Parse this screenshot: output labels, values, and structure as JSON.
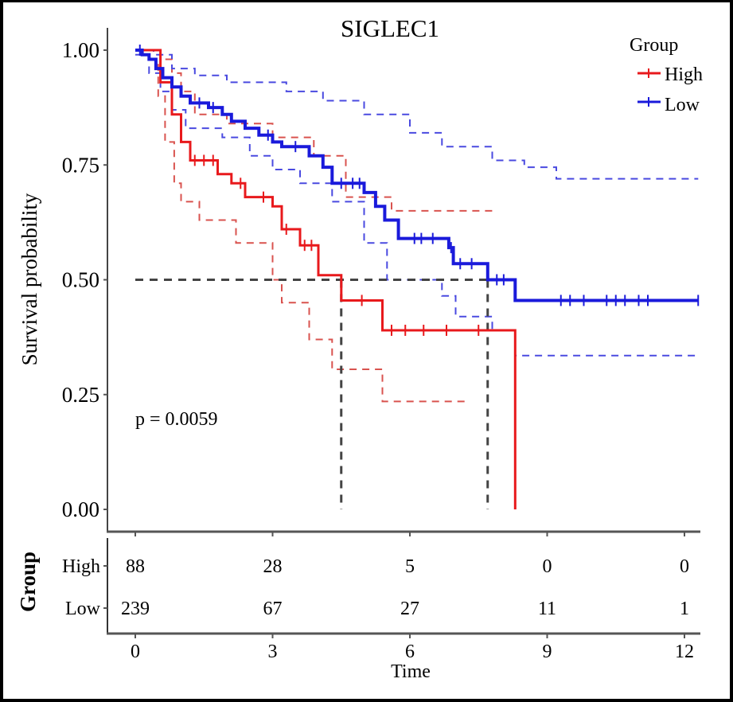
{
  "chart_data": {
    "type": "line",
    "subtype": "kaplan-meier",
    "title": "SIGLEC1",
    "xlabel": "Time",
    "ylabel": "Survival probability",
    "xlim": [
      0,
      12.5
    ],
    "ylim": [
      0,
      1
    ],
    "x_ticks": [
      "0",
      "3",
      "6",
      "9",
      "12"
    ],
    "x_tick_values": [
      0,
      3,
      6,
      9,
      12
    ],
    "y_ticks": [
      "0.00",
      "0.25",
      "0.50",
      "0.75",
      "1.00"
    ],
    "y_tick_values": [
      0,
      0.25,
      0.5,
      0.75,
      1.0
    ],
    "grid": false,
    "legend": {
      "title": "Group",
      "placement": "top-right",
      "entries": [
        "High",
        "Low"
      ]
    },
    "annotation": "p = 0.0059",
    "median_line_y": 0.5,
    "median_survival": {
      "High": 4.5,
      "Low": 7.7
    },
    "series": [
      {
        "name": "High",
        "color": "#e8191c",
        "steps": [
          [
            0,
            1.0
          ],
          [
            0.55,
            1.0
          ],
          [
            0.55,
            0.93
          ],
          [
            0.8,
            0.93
          ],
          [
            0.8,
            0.86
          ],
          [
            1.0,
            0.86
          ],
          [
            1.0,
            0.8
          ],
          [
            1.2,
            0.8
          ],
          [
            1.2,
            0.76
          ],
          [
            1.8,
            0.76
          ],
          [
            1.8,
            0.73
          ],
          [
            2.1,
            0.73
          ],
          [
            2.1,
            0.71
          ],
          [
            2.4,
            0.71
          ],
          [
            2.4,
            0.68
          ],
          [
            3.0,
            0.68
          ],
          [
            3.0,
            0.66
          ],
          [
            3.2,
            0.66
          ],
          [
            3.2,
            0.61
          ],
          [
            3.6,
            0.61
          ],
          [
            3.6,
            0.575
          ],
          [
            4.0,
            0.575
          ],
          [
            4.0,
            0.51
          ],
          [
            4.5,
            0.51
          ],
          [
            4.5,
            0.455
          ],
          [
            5.4,
            0.455
          ],
          [
            5.4,
            0.39
          ],
          [
            8.3,
            0.39
          ],
          [
            8.3,
            0.0
          ]
        ],
        "censor": [
          [
            1.3,
            0.76
          ],
          [
            1.5,
            0.76
          ],
          [
            1.7,
            0.76
          ],
          [
            2.3,
            0.71
          ],
          [
            2.8,
            0.68
          ],
          [
            3.3,
            0.61
          ],
          [
            3.7,
            0.575
          ],
          [
            3.85,
            0.575
          ],
          [
            4.95,
            0.455
          ],
          [
            5.6,
            0.39
          ],
          [
            5.9,
            0.39
          ],
          [
            6.3,
            0.39
          ],
          [
            6.8,
            0.39
          ],
          [
            7.5,
            0.39
          ]
        ],
        "ci_upper": [
          [
            0.3,
            1.0
          ],
          [
            0.55,
            1.0
          ],
          [
            0.55,
            0.98
          ],
          [
            0.8,
            0.98
          ],
          [
            0.8,
            0.95
          ],
          [
            1.0,
            0.95
          ],
          [
            1.0,
            0.91
          ],
          [
            1.3,
            0.91
          ],
          [
            1.3,
            0.86
          ],
          [
            2.0,
            0.86
          ],
          [
            2.0,
            0.84
          ],
          [
            3.0,
            0.84
          ],
          [
            3.0,
            0.81
          ],
          [
            3.9,
            0.81
          ],
          [
            3.9,
            0.77
          ],
          [
            4.6,
            0.77
          ],
          [
            4.6,
            0.68
          ],
          [
            5.6,
            0.68
          ],
          [
            5.6,
            0.65
          ],
          [
            7.8,
            0.65
          ]
        ],
        "ci_lower": [
          [
            0.5,
            0.97
          ],
          [
            0.5,
            0.9
          ],
          [
            0.65,
            0.9
          ],
          [
            0.65,
            0.8
          ],
          [
            0.85,
            0.8
          ],
          [
            0.85,
            0.71
          ],
          [
            1.0,
            0.71
          ],
          [
            1.0,
            0.67
          ],
          [
            1.4,
            0.67
          ],
          [
            1.4,
            0.63
          ],
          [
            2.2,
            0.63
          ],
          [
            2.2,
            0.58
          ],
          [
            3.0,
            0.58
          ],
          [
            3.0,
            0.5
          ],
          [
            3.2,
            0.5
          ],
          [
            3.2,
            0.45
          ],
          [
            3.8,
            0.45
          ],
          [
            3.8,
            0.37
          ],
          [
            4.3,
            0.37
          ],
          [
            4.3,
            0.305
          ],
          [
            5.4,
            0.305
          ],
          [
            5.4,
            0.235
          ],
          [
            7.3,
            0.235
          ]
        ]
      },
      {
        "name": "Low",
        "color": "#1a1adb",
        "steps": [
          [
            0,
            1.0
          ],
          [
            0.15,
            1.0
          ],
          [
            0.15,
            0.99
          ],
          [
            0.3,
            0.99
          ],
          [
            0.3,
            0.98
          ],
          [
            0.45,
            0.98
          ],
          [
            0.45,
            0.96
          ],
          [
            0.6,
            0.96
          ],
          [
            0.6,
            0.94
          ],
          [
            0.8,
            0.94
          ],
          [
            0.8,
            0.92
          ],
          [
            1.0,
            0.92
          ],
          [
            1.0,
            0.9
          ],
          [
            1.2,
            0.9
          ],
          [
            1.2,
            0.885
          ],
          [
            1.6,
            0.885
          ],
          [
            1.6,
            0.875
          ],
          [
            1.9,
            0.875
          ],
          [
            1.9,
            0.86
          ],
          [
            2.1,
            0.86
          ],
          [
            2.1,
            0.845
          ],
          [
            2.4,
            0.845
          ],
          [
            2.4,
            0.83
          ],
          [
            2.7,
            0.83
          ],
          [
            2.7,
            0.815
          ],
          [
            3.0,
            0.815
          ],
          [
            3.0,
            0.8
          ],
          [
            3.2,
            0.8
          ],
          [
            3.2,
            0.79
          ],
          [
            3.8,
            0.79
          ],
          [
            3.8,
            0.77
          ],
          [
            4.1,
            0.77
          ],
          [
            4.1,
            0.745
          ],
          [
            4.3,
            0.745
          ],
          [
            4.3,
            0.71
          ],
          [
            5.0,
            0.71
          ],
          [
            5.0,
            0.69
          ],
          [
            5.25,
            0.69
          ],
          [
            5.25,
            0.66
          ],
          [
            5.45,
            0.66
          ],
          [
            5.45,
            0.63
          ],
          [
            5.75,
            0.63
          ],
          [
            5.75,
            0.59
          ],
          [
            6.85,
            0.59
          ],
          [
            6.85,
            0.57
          ],
          [
            6.95,
            0.57
          ],
          [
            6.95,
            0.535
          ],
          [
            7.7,
            0.535
          ],
          [
            7.7,
            0.5
          ],
          [
            8.3,
            0.5
          ],
          [
            8.3,
            0.455
          ],
          [
            12.3,
            0.455
          ]
        ],
        "censor": [
          [
            0.1,
            1.0
          ],
          [
            1.4,
            0.885
          ],
          [
            1.7,
            0.875
          ],
          [
            2.9,
            0.815
          ],
          [
            3.5,
            0.79
          ],
          [
            4.5,
            0.71
          ],
          [
            4.75,
            0.71
          ],
          [
            4.9,
            0.71
          ],
          [
            6.1,
            0.59
          ],
          [
            6.25,
            0.59
          ],
          [
            6.5,
            0.59
          ],
          [
            6.9,
            0.57
          ],
          [
            7.1,
            0.535
          ],
          [
            7.35,
            0.535
          ],
          [
            7.9,
            0.5
          ],
          [
            8.05,
            0.5
          ],
          [
            9.3,
            0.455
          ],
          [
            9.5,
            0.455
          ],
          [
            9.8,
            0.455
          ],
          [
            10.3,
            0.455
          ],
          [
            10.5,
            0.455
          ],
          [
            10.7,
            0.455
          ],
          [
            11.0,
            0.455
          ],
          [
            11.2,
            0.455
          ],
          [
            12.3,
            0.455
          ]
        ],
        "ci_upper": [
          [
            0,
            1.0
          ],
          [
            0.4,
            1.0
          ],
          [
            0.4,
            0.99
          ],
          [
            0.8,
            0.99
          ],
          [
            0.8,
            0.96
          ],
          [
            1.3,
            0.96
          ],
          [
            1.3,
            0.945
          ],
          [
            2.0,
            0.945
          ],
          [
            2.0,
            0.93
          ],
          [
            3.3,
            0.93
          ],
          [
            3.3,
            0.91
          ],
          [
            4.1,
            0.91
          ],
          [
            4.1,
            0.89
          ],
          [
            5.0,
            0.89
          ],
          [
            5.0,
            0.86
          ],
          [
            6.0,
            0.86
          ],
          [
            6.0,
            0.82
          ],
          [
            6.7,
            0.82
          ],
          [
            6.7,
            0.79
          ],
          [
            7.8,
            0.79
          ],
          [
            7.8,
            0.76
          ],
          [
            8.5,
            0.76
          ],
          [
            8.5,
            0.745
          ],
          [
            9.2,
            0.745
          ],
          [
            9.2,
            0.72
          ],
          [
            12.3,
            0.72
          ]
        ],
        "ci_lower": [
          [
            0,
            0.99
          ],
          [
            0.3,
            0.99
          ],
          [
            0.3,
            0.95
          ],
          [
            0.55,
            0.95
          ],
          [
            0.55,
            0.91
          ],
          [
            0.8,
            0.91
          ],
          [
            0.8,
            0.87
          ],
          [
            1.1,
            0.87
          ],
          [
            1.1,
            0.83
          ],
          [
            1.9,
            0.83
          ],
          [
            1.9,
            0.81
          ],
          [
            2.5,
            0.81
          ],
          [
            2.5,
            0.77
          ],
          [
            3.0,
            0.77
          ],
          [
            3.0,
            0.74
          ],
          [
            3.6,
            0.74
          ],
          [
            3.6,
            0.71
          ],
          [
            4.3,
            0.71
          ],
          [
            4.3,
            0.67
          ],
          [
            5.0,
            0.67
          ],
          [
            5.0,
            0.58
          ],
          [
            5.5,
            0.58
          ],
          [
            5.5,
            0.5
          ],
          [
            6.7,
            0.5
          ],
          [
            6.7,
            0.465
          ],
          [
            7.0,
            0.465
          ],
          [
            7.0,
            0.42
          ],
          [
            7.8,
            0.42
          ],
          [
            7.8,
            0.39
          ],
          [
            8.3,
            0.39
          ],
          [
            8.3,
            0.335
          ],
          [
            12.3,
            0.335
          ]
        ]
      }
    ]
  },
  "risk_table": {
    "ylabel": "Group",
    "xlabel": "Time",
    "time_points": [
      0,
      3,
      6,
      9,
      12
    ],
    "rows": [
      {
        "group": "High",
        "counts": [
          "88",
          "28",
          "5",
          "0",
          "0"
        ]
      },
      {
        "group": "Low",
        "counts": [
          "239",
          "67",
          "27",
          "11",
          "1"
        ]
      }
    ]
  }
}
